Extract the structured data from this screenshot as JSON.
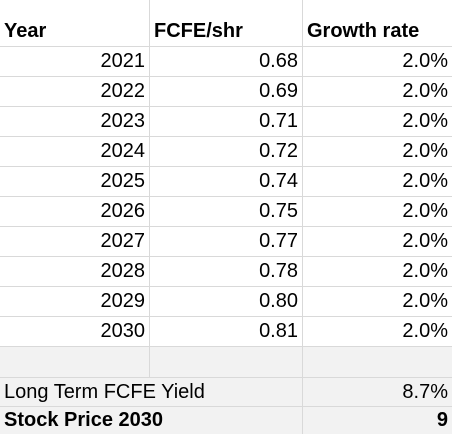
{
  "headers": [
    "Year",
    "FCFE/shr",
    "Growth rate"
  ],
  "rows": [
    {
      "year": "2021",
      "fcfe": "0.68",
      "growth": "2.0%"
    },
    {
      "year": "2022",
      "fcfe": "0.69",
      "growth": "2.0%"
    },
    {
      "year": "2023",
      "fcfe": "0.71",
      "growth": "2.0%"
    },
    {
      "year": "2024",
      "fcfe": "0.72",
      "growth": "2.0%"
    },
    {
      "year": "2025",
      "fcfe": "0.74",
      "growth": "2.0%"
    },
    {
      "year": "2026",
      "fcfe": "0.75",
      "growth": "2.0%"
    },
    {
      "year": "2027",
      "fcfe": "0.77",
      "growth": "2.0%"
    },
    {
      "year": "2028",
      "fcfe": "0.78",
      "growth": "2.0%"
    },
    {
      "year": "2029",
      "fcfe": "0.80",
      "growth": "2.0%"
    },
    {
      "year": "2030",
      "fcfe": "0.81",
      "growth": "2.0%"
    }
  ],
  "summary": {
    "yield_label": "Long Term FCFE Yield",
    "yield_value": "8.7%",
    "price_label": "Stock Price 2030",
    "price_value": "9"
  },
  "colors": {
    "gridline": "#d9d9d9",
    "summary_fill": "#f2f2f2"
  }
}
